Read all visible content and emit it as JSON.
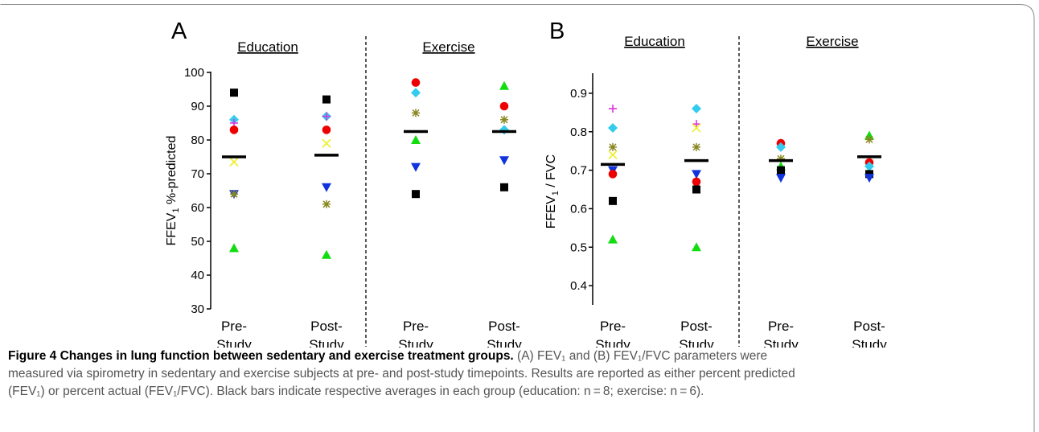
{
  "figure": {
    "caption": {
      "title": "Figure 4 Changes in lung function between sedentary and exercise treatment groups.",
      "line1": " (A) FEV₁ and (B) FEV₁/FVC parameters were",
      "line2": "measured via spirometry in sedentary and exercise subjects at pre- and post-study timepoints. Results are reported as either percent predicted",
      "line3": "(FEV₁) or percent actual (FEV₁/FVC). Black bars indicate respective averages in each group (education: n = 8; exercise: n = 6)."
    }
  },
  "chart_data": [
    {
      "panel_label": "A",
      "type": "scatter",
      "ylabel": "FFEV₁ %-predicted",
      "ylim": [
        30,
        100
      ],
      "yticks": [
        30,
        40,
        50,
        60,
        70,
        80,
        90,
        100
      ],
      "groups": [
        "Education",
        "Exercise"
      ],
      "categories": [
        "Pre-\nStudy",
        "Post-\nStudy",
        "Pre-\nStudy",
        "Post-\nStudy"
      ],
      "means": [
        75,
        75.5,
        82.5,
        82.5
      ],
      "points": [
        {
          "cat": 0,
          "y": 94,
          "marker": "square",
          "color": "#000000"
        },
        {
          "cat": 0,
          "y": 86,
          "marker": "diamond",
          "color": "#33ccee"
        },
        {
          "cat": 0,
          "y": 85,
          "marker": "plus",
          "color": "#dd33dd"
        },
        {
          "cat": 0,
          "y": 83,
          "marker": "circle",
          "color": "#ee0000"
        },
        {
          "cat": 0,
          "y": 73.5,
          "marker": "x",
          "color": "#eeee22"
        },
        {
          "cat": 0,
          "y": 64,
          "marker": "triangle-down",
          "color": "#1133dd"
        },
        {
          "cat": 0,
          "y": 64,
          "marker": "star",
          "color": "#888822"
        },
        {
          "cat": 0,
          "y": 48,
          "marker": "triangle-up",
          "color": "#11dd11"
        },
        {
          "cat": 1,
          "y": 92,
          "marker": "square",
          "color": "#000000"
        },
        {
          "cat": 1,
          "y": 87,
          "marker": "diamond",
          "color": "#33ccee"
        },
        {
          "cat": 1,
          "y": 87,
          "marker": "plus",
          "color": "#dd33dd"
        },
        {
          "cat": 1,
          "y": 83,
          "marker": "circle",
          "color": "#ee0000"
        },
        {
          "cat": 1,
          "y": 79,
          "marker": "x",
          "color": "#eeee22"
        },
        {
          "cat": 1,
          "y": 66,
          "marker": "triangle-down",
          "color": "#1133dd"
        },
        {
          "cat": 1,
          "y": 61,
          "marker": "star",
          "color": "#888822"
        },
        {
          "cat": 1,
          "y": 46,
          "marker": "triangle-up",
          "color": "#11dd11"
        },
        {
          "cat": 2,
          "y": 97,
          "marker": "circle",
          "color": "#ee0000"
        },
        {
          "cat": 2,
          "y": 94,
          "marker": "diamond",
          "color": "#33ccee"
        },
        {
          "cat": 2,
          "y": 88,
          "marker": "star",
          "color": "#888822"
        },
        {
          "cat": 2,
          "y": 80,
          "marker": "triangle-up",
          "color": "#11dd11"
        },
        {
          "cat": 2,
          "y": 72,
          "marker": "triangle-down",
          "color": "#1133dd"
        },
        {
          "cat": 2,
          "y": 64,
          "marker": "square",
          "color": "#000000"
        },
        {
          "cat": 3,
          "y": 96,
          "marker": "triangle-up",
          "color": "#11dd11"
        },
        {
          "cat": 3,
          "y": 90,
          "marker": "circle",
          "color": "#ee0000"
        },
        {
          "cat": 3,
          "y": 86,
          "marker": "star",
          "color": "#888822"
        },
        {
          "cat": 3,
          "y": 83,
          "marker": "diamond",
          "color": "#33ccee"
        },
        {
          "cat": 3,
          "y": 74,
          "marker": "triangle-down",
          "color": "#1133dd"
        },
        {
          "cat": 3,
          "y": 66,
          "marker": "square",
          "color": "#000000"
        }
      ]
    },
    {
      "panel_label": "B",
      "type": "scatter",
      "ylabel": "FFEV₁ / FVC",
      "ylim": [
        0.35,
        0.95
      ],
      "yticks": [
        0.4,
        0.5,
        0.6,
        0.7,
        0.8,
        0.9
      ],
      "groups": [
        "Education",
        "Exercise"
      ],
      "categories": [
        "Pre-\nStudy",
        "Post-\nStudy",
        "Pre-\nStudy",
        "Post-\nStudy"
      ],
      "means": [
        0.715,
        0.725,
        0.725,
        0.735
      ],
      "points": [
        {
          "cat": 0,
          "y": 0.86,
          "marker": "plus",
          "color": "#dd33dd"
        },
        {
          "cat": 0,
          "y": 0.81,
          "marker": "diamond",
          "color": "#33ccee"
        },
        {
          "cat": 0,
          "y": 0.76,
          "marker": "star",
          "color": "#888822"
        },
        {
          "cat": 0,
          "y": 0.74,
          "marker": "x",
          "color": "#eeee22"
        },
        {
          "cat": 0,
          "y": 0.7,
          "marker": "triangle-down",
          "color": "#1133dd"
        },
        {
          "cat": 0,
          "y": 0.69,
          "marker": "circle",
          "color": "#ee0000"
        },
        {
          "cat": 0,
          "y": 0.62,
          "marker": "square",
          "color": "#000000"
        },
        {
          "cat": 0,
          "y": 0.52,
          "marker": "triangle-up",
          "color": "#11dd11"
        },
        {
          "cat": 1,
          "y": 0.86,
          "marker": "diamond",
          "color": "#33ccee"
        },
        {
          "cat": 1,
          "y": 0.82,
          "marker": "plus",
          "color": "#dd33dd"
        },
        {
          "cat": 1,
          "y": 0.81,
          "marker": "x",
          "color": "#eeee22"
        },
        {
          "cat": 1,
          "y": 0.76,
          "marker": "star",
          "color": "#888822"
        },
        {
          "cat": 1,
          "y": 0.69,
          "marker": "triangle-down",
          "color": "#1133dd"
        },
        {
          "cat": 1,
          "y": 0.67,
          "marker": "circle",
          "color": "#ee0000"
        },
        {
          "cat": 1,
          "y": 0.65,
          "marker": "square",
          "color": "#000000"
        },
        {
          "cat": 1,
          "y": 0.5,
          "marker": "triangle-up",
          "color": "#11dd11"
        },
        {
          "cat": 2,
          "y": 0.77,
          "marker": "circle",
          "color": "#ee0000"
        },
        {
          "cat": 2,
          "y": 0.76,
          "marker": "diamond",
          "color": "#33ccee"
        },
        {
          "cat": 2,
          "y": 0.73,
          "marker": "star",
          "color": "#888822"
        },
        {
          "cat": 2,
          "y": 0.71,
          "marker": "triangle-up",
          "color": "#11dd11"
        },
        {
          "cat": 2,
          "y": 0.7,
          "marker": "square",
          "color": "#000000"
        },
        {
          "cat": 2,
          "y": 0.68,
          "marker": "triangle-down",
          "color": "#1133dd"
        },
        {
          "cat": 3,
          "y": 0.79,
          "marker": "triangle-up",
          "color": "#11dd11"
        },
        {
          "cat": 3,
          "y": 0.78,
          "marker": "star",
          "color": "#888822"
        },
        {
          "cat": 3,
          "y": 0.72,
          "marker": "circle",
          "color": "#ee0000"
        },
        {
          "cat": 3,
          "y": 0.71,
          "marker": "diamond",
          "color": "#33ccee"
        },
        {
          "cat": 3,
          "y": 0.69,
          "marker": "square",
          "color": "#000000"
        },
        {
          "cat": 3,
          "y": 0.68,
          "marker": "triangle-down",
          "color": "#1133dd"
        }
      ]
    }
  ]
}
